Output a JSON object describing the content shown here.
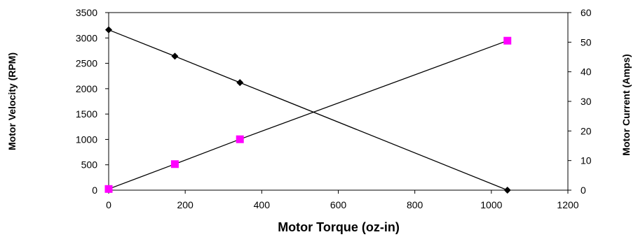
{
  "chart_data": {
    "type": "line",
    "title": "",
    "xlabel": "Motor Torque (oz-in)",
    "ylabel_left": "Motor Velocity (RPM)",
    "ylabel_right": "Motor Current (Amps)",
    "xlim": [
      0,
      1200
    ],
    "ylim_left": [
      0,
      3500
    ],
    "ylim_right": [
      0,
      60
    ],
    "x_ticks": [
      "0",
      "200",
      "400",
      "600",
      "800",
      "1000",
      "1200"
    ],
    "y_left_ticks": [
      "0",
      "500",
      "1000",
      "1500",
      "2000",
      "2500",
      "3000",
      "3500"
    ],
    "y_right_ticks": [
      "0",
      "10",
      "20",
      "30",
      "40",
      "50",
      "60"
    ],
    "grid": false,
    "legend": "none",
    "series": [
      {
        "axis": "left",
        "color": "#000000",
        "marker": "diamond",
        "x": [
          0,
          173,
          343,
          1042
        ],
        "y": [
          3160,
          2640,
          2120,
          0
        ]
      },
      {
        "axis": "right",
        "color": "#ff00ff",
        "marker": "square",
        "x": [
          0,
          173,
          343,
          1042
        ],
        "y": [
          0.4,
          8.8,
          17.2,
          50.5
        ]
      }
    ]
  }
}
